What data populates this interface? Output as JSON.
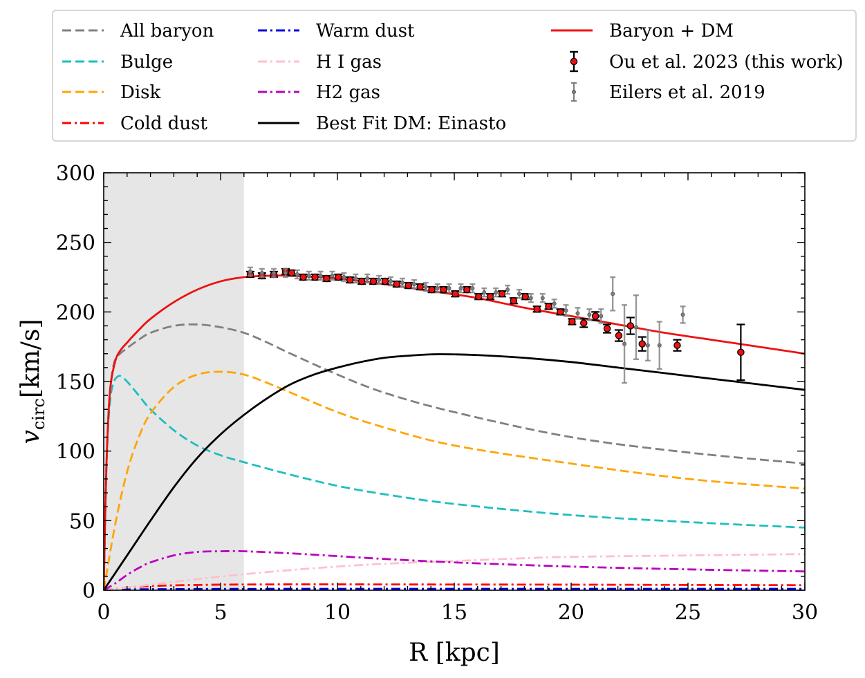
{
  "chart_data": {
    "type": "line",
    "title": "",
    "xlabel": "R [kpc]",
    "ylabel_main": "v",
    "ylabel_sub": "circ",
    "ylabel_unit": "[km/s]",
    "xlim": [
      0,
      30
    ],
    "ylim": [
      0,
      300
    ],
    "x_ticks": [
      0,
      5,
      10,
      15,
      20,
      25,
      30
    ],
    "y_ticks": [
      0,
      50,
      100,
      150,
      200,
      250,
      300
    ],
    "grid": false,
    "legend_position": "top",
    "shaded_region": {
      "x_from": 0,
      "x_to": 6,
      "color": "#e6e6e6"
    },
    "series": [
      {
        "name": "All baryon",
        "style": "dashed",
        "color": "#808080",
        "x": [
          0,
          0.1,
          0.2,
          0.3,
          0.4,
          0.5,
          0.7,
          1,
          1.5,
          2,
          3,
          4,
          5,
          6,
          7,
          8,
          10,
          12,
          15,
          20,
          25,
          30
        ],
        "y": [
          0,
          80,
          125,
          148,
          160,
          166,
          170,
          174,
          180,
          185,
          190,
          191,
          189,
          185,
          178,
          170,
          155,
          142,
          128,
          110,
          99,
          91
        ]
      },
      {
        "name": "Bulge",
        "style": "dashed",
        "color": "#1ebebe",
        "x": [
          0,
          0.1,
          0.2,
          0.3,
          0.4,
          0.5,
          0.7,
          1,
          1.5,
          2,
          3,
          4,
          5,
          6,
          8,
          10,
          12,
          15,
          20,
          25,
          30
        ],
        "y": [
          0,
          80,
          120,
          140,
          148,
          152,
          154,
          150,
          140,
          130,
          115,
          104,
          97,
          92,
          83,
          75,
          69,
          62,
          54,
          49,
          45
        ]
      },
      {
        "name": "Disk",
        "style": "dashed",
        "color": "#ffa500",
        "x": [
          0,
          0.5,
          1,
          1.5,
          2,
          3,
          4,
          5,
          6,
          7,
          8,
          10,
          12,
          15,
          20,
          25,
          30
        ],
        "y": [
          0,
          48,
          85,
          110,
          127,
          146,
          155,
          157,
          155,
          149,
          142,
          128,
          117,
          104,
          91,
          80,
          73
        ]
      },
      {
        "name": "Cold dust",
        "style": "dashdot",
        "color": "#ff0000",
        "x": [
          0,
          1,
          2,
          3,
          4,
          5,
          6,
          8,
          10,
          15,
          20,
          25,
          30
        ],
        "y": [
          0,
          2,
          3,
          3.5,
          3.8,
          4,
          4.1,
          4.2,
          4.2,
          4.1,
          4,
          3.8,
          3.6
        ]
      },
      {
        "name": "Warm dust",
        "style": "dashdot",
        "color": "#0000dd",
        "x": [
          0,
          1,
          2,
          5,
          10,
          15,
          20,
          25,
          30
        ],
        "y": [
          0,
          0.5,
          0.7,
          0.9,
          1,
          1,
          1,
          1,
          1
        ]
      },
      {
        "name": "H I gas",
        "style": "dashdot",
        "color": "#ffc0cb",
        "x": [
          0,
          2,
          4,
          6,
          8,
          10,
          12,
          15,
          18,
          20,
          25,
          30
        ],
        "y": [
          0,
          4,
          8,
          11.5,
          14.5,
          17,
          19,
          21,
          23,
          24,
          25,
          26
        ]
      },
      {
        "name": "H2 gas",
        "style": "dashdot",
        "color": "#bb00bb",
        "x": [
          0,
          0.5,
          1,
          1.5,
          2,
          3,
          4,
          5,
          6,
          8,
          10,
          12,
          15,
          20,
          25,
          30
        ],
        "y": [
          0,
          5,
          11,
          16,
          20,
          25,
          27.5,
          28,
          28,
          26.5,
          24.5,
          22.5,
          20,
          17,
          15,
          13.5
        ]
      },
      {
        "name": "Best Fit DM: Einasto",
        "style": "solid",
        "color": "#000000",
        "x": [
          0,
          1,
          2,
          3,
          4,
          5,
          6,
          7,
          8,
          9,
          10,
          11,
          12,
          13,
          14,
          15,
          16,
          18,
          20,
          22,
          24,
          26,
          28,
          30
        ],
        "y": [
          0,
          25,
          50,
          74,
          95,
          112,
          126,
          138,
          148,
          155,
          160,
          164,
          167,
          168.5,
          169.5,
          169.5,
          169,
          167,
          164,
          160,
          156,
          152,
          148,
          144
        ]
      },
      {
        "name": "Baryon + DM",
        "style": "solid",
        "color": "#ee1111",
        "x": [
          0,
          0.1,
          0.2,
          0.3,
          0.5,
          0.7,
          1,
          1.5,
          2,
          3,
          4,
          5,
          6,
          7,
          8,
          10,
          12,
          14,
          16,
          18,
          20,
          22,
          24,
          26,
          28,
          30
        ],
        "y": [
          0,
          80,
          125,
          148,
          165,
          172,
          178,
          187,
          195,
          207,
          216,
          222,
          225,
          226,
          226,
          224,
          220,
          215,
          210,
          203,
          197,
          191,
          185,
          180,
          175,
          170
        ]
      }
    ],
    "data_points": [
      {
        "name": "Ou et al. 2023 (this work)",
        "color": "#ee1111",
        "edge": "#000000",
        "errcolor": "#000000",
        "x": [
          6.27,
          6.77,
          7.28,
          7.78,
          8.04,
          8.54,
          9.04,
          9.54,
          10.04,
          10.54,
          11.04,
          11.54,
          12.04,
          12.54,
          13.04,
          13.54,
          14.04,
          14.54,
          15.04,
          15.54,
          16.04,
          16.54,
          17.04,
          17.54,
          18.04,
          18.54,
          19.04,
          19.54,
          20.04,
          20.54,
          21.04,
          21.54,
          22.04,
          22.54,
          23.04,
          24.54,
          27.26
        ],
        "y": [
          227,
          226,
          227,
          229,
          228,
          225,
          225,
          224,
          225,
          223,
          222,
          222,
          222,
          220,
          219,
          218,
          216,
          216,
          213,
          216,
          211,
          211,
          213,
          208,
          211,
          202,
          204,
          200,
          193,
          192,
          197,
          188,
          183,
          190,
          177,
          176,
          171
        ],
        "err": [
          2,
          2,
          2,
          2,
          2,
          2,
          2,
          2,
          2,
          2,
          2,
          2,
          2,
          2,
          2,
          2,
          2,
          2,
          2,
          2,
          2,
          2,
          2,
          2,
          2,
          2,
          2,
          2,
          2,
          3,
          3,
          3,
          4,
          6,
          5,
          4,
          20
        ]
      },
      {
        "name": "Eilers et al. 2019",
        "color": "#7f7f7f",
        "edge": "#555555",
        "errcolor": "#7f7f7f",
        "x": [
          6.27,
          6.77,
          7.28,
          7.78,
          8.28,
          8.78,
          9.28,
          9.78,
          10.28,
          10.78,
          11.28,
          11.78,
          12.28,
          12.78,
          13.28,
          13.78,
          14.28,
          14.78,
          15.28,
          15.78,
          16.28,
          16.78,
          17.28,
          17.78,
          18.28,
          18.78,
          19.28,
          19.78,
          20.28,
          20.78,
          21.28,
          21.78,
          22.28,
          22.78,
          23.28,
          23.78,
          24.78
        ],
        "y": [
          229,
          228,
          228,
          228,
          227,
          226,
          226,
          226,
          225,
          224,
          224,
          223,
          222,
          221,
          220,
          218,
          217,
          217,
          217,
          217,
          214,
          214,
          216,
          213,
          210,
          210,
          206,
          201,
          199,
          198,
          197,
          213,
          177,
          189,
          176,
          176,
          198
        ],
        "err": [
          3,
          3,
          3,
          3,
          3,
          3,
          3,
          3,
          3,
          3,
          3,
          3,
          3,
          3,
          3,
          3,
          3,
          3,
          3,
          3,
          3,
          3,
          3,
          3,
          3,
          3,
          3,
          4,
          4,
          4,
          5,
          12,
          28,
          23,
          11,
          17,
          6
        ]
      }
    ],
    "legend": [
      {
        "label": "All baryon",
        "kind": "line",
        "style": "dashed",
        "color": "#808080"
      },
      {
        "label": "Bulge",
        "kind": "line",
        "style": "dashed",
        "color": "#1ebebe"
      },
      {
        "label": "Disk",
        "kind": "line",
        "style": "dashed",
        "color": "#ffa500"
      },
      {
        "label": "Cold dust",
        "kind": "line",
        "style": "dashdot",
        "color": "#ff0000"
      },
      {
        "label": "Warm dust",
        "kind": "line",
        "style": "dashdot",
        "color": "#0000dd"
      },
      {
        "label": "H I gas",
        "kind": "line",
        "style": "dashdot",
        "color": "#ffc0cb"
      },
      {
        "label": "H2 gas",
        "kind": "line",
        "style": "dashdot",
        "color": "#bb00bb"
      },
      {
        "label": "Best Fit DM: Einasto",
        "kind": "line",
        "style": "solid",
        "color": "#000000"
      },
      {
        "label": "Baryon + DM",
        "kind": "line",
        "style": "solid",
        "color": "#ee1111"
      },
      {
        "label": "Ou et al. 2023 (this work)",
        "kind": "errorbar",
        "color": "#ee1111",
        "errcolor": "#000000"
      },
      {
        "label": "Eilers et al. 2019",
        "kind": "errorbar",
        "color": "#7f7f7f",
        "errcolor": "#7f7f7f"
      }
    ]
  }
}
